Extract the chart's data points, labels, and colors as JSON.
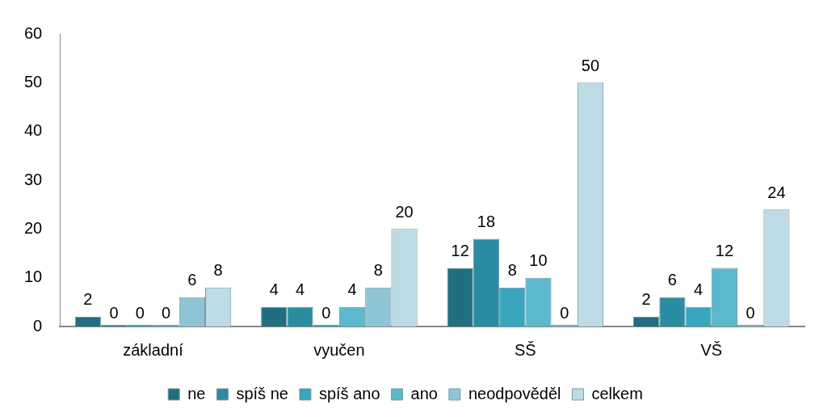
{
  "chart_data": {
    "type": "bar",
    "categories": [
      "základní",
      "vyučen",
      "SŠ",
      "VŠ"
    ],
    "series": [
      {
        "name": "ne",
        "color": "#1f6f80",
        "values": [
          2,
          4,
          12,
          2
        ]
      },
      {
        "name": "spíš ne",
        "color": "#2a8ca0",
        "values": [
          0,
          4,
          18,
          6
        ]
      },
      {
        "name": "spíš ano",
        "color": "#38a6bd",
        "values": [
          0,
          0,
          8,
          4
        ]
      },
      {
        "name": "ano",
        "color": "#5cb8cc",
        "values": [
          0,
          4,
          10,
          12
        ]
      },
      {
        "name": "neodpověděl",
        "color": "#8ec5d6",
        "values": [
          6,
          8,
          0,
          0
        ]
      },
      {
        "name": "celkem",
        "color": "#bcdbe4",
        "values": [
          8,
          20,
          50,
          24
        ]
      }
    ],
    "ylim": [
      0,
      60
    ],
    "yticks": [
      0,
      10,
      20,
      30,
      40,
      50,
      60
    ],
    "grid": false,
    "legend": "bottom",
    "data_labels": true
  }
}
